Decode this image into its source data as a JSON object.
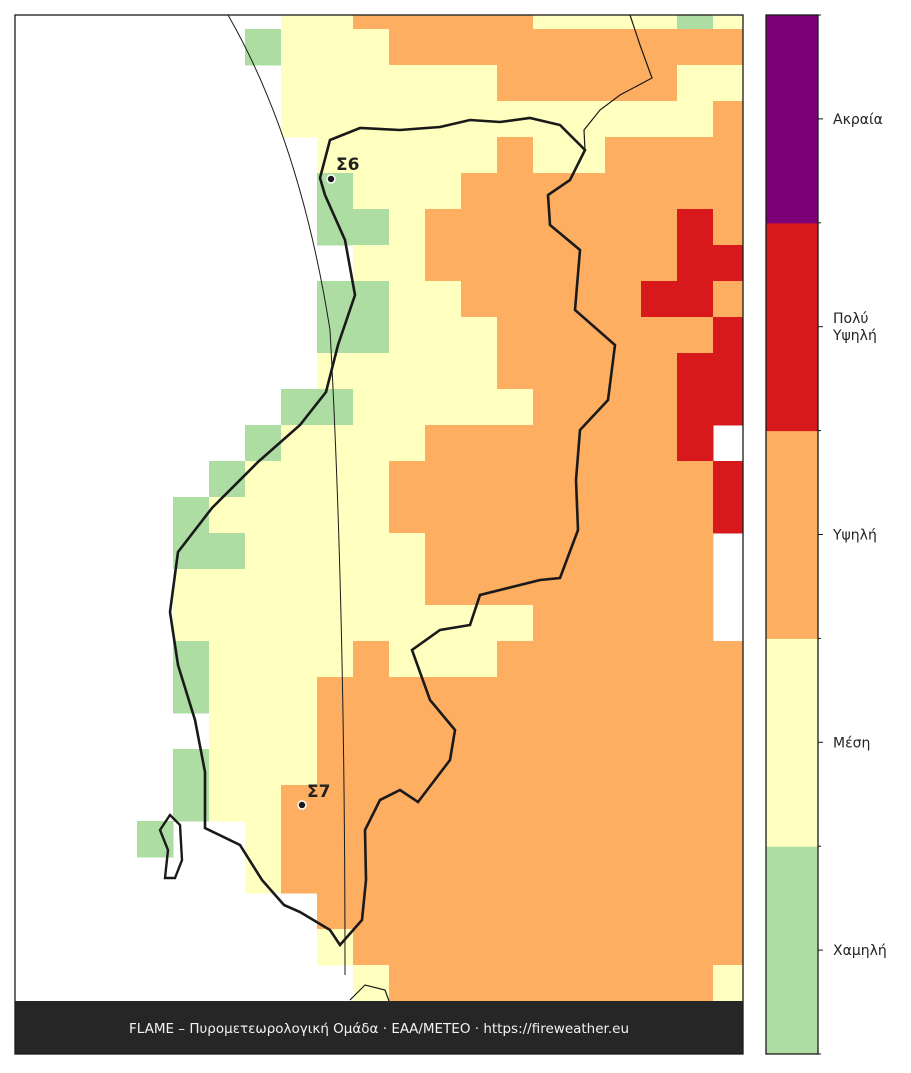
{
  "map": {
    "stations": [
      {
        "label": "Σ6"
      },
      {
        "label": "Σ7"
      }
    ],
    "footer": "FLAME – Πυρομετεωρολογική Ομάδα · ΕΑΑ/METEO · https://fireweather.eu"
  },
  "legend": {
    "levels": [
      {
        "label": [
          "Χαμηλή"
        ],
        "color": "#addda3"
      },
      {
        "label": [
          "Μέση"
        ],
        "color": "#ffffbf"
      },
      {
        "label": [
          "Υψηλή"
        ],
        "color": "#fdae61"
      },
      {
        "label": [
          "Πολύ",
          "Υψηλή"
        ],
        "color": "#d7191c"
      },
      {
        "label": [
          "Ακραία"
        ],
        "color": "#7b0077"
      }
    ]
  }
}
